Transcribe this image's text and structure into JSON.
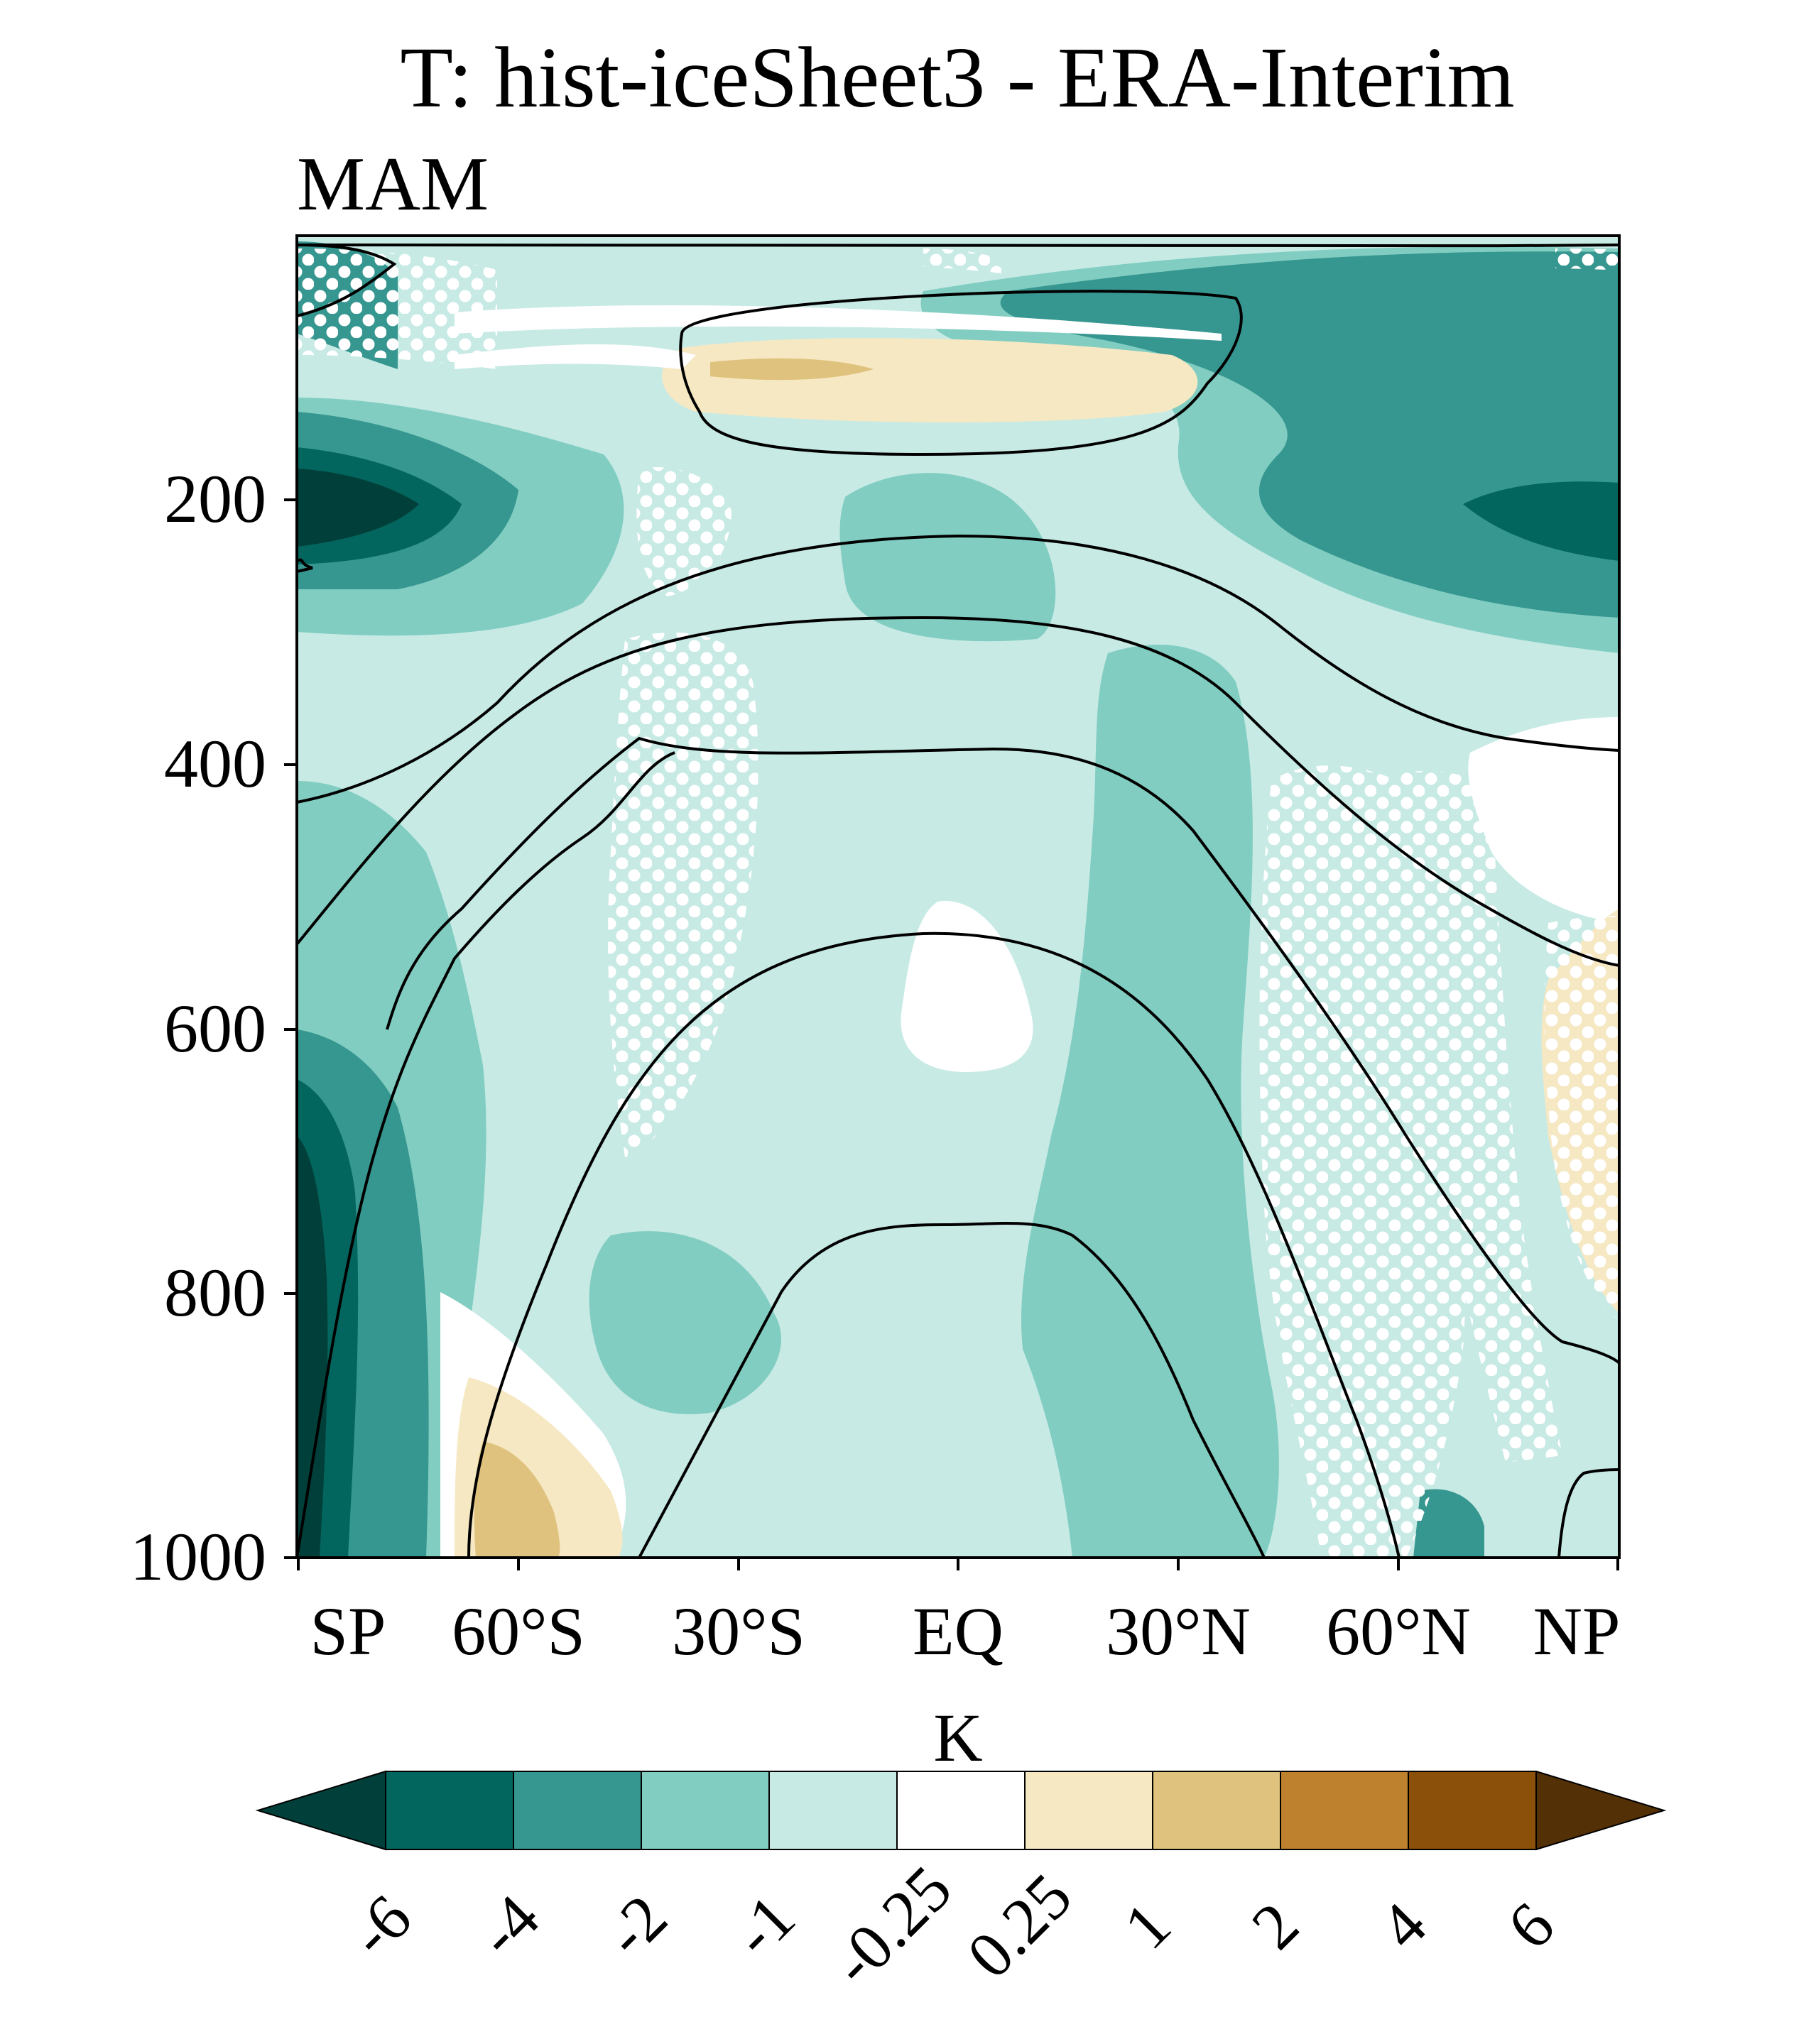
{
  "chart_data": {
    "type": "heatmap",
    "title": "T: hist-iceSheet3 - ERA-Interim",
    "subtitle": "MAM",
    "x_ticks": [
      "SP",
      "60°S",
      "30°S",
      "EQ",
      "30°N",
      "60°N",
      "NP"
    ],
    "x_values": [
      -90,
      -60,
      -30,
      0,
      30,
      60,
      90
    ],
    "xlim": [
      -90,
      90
    ],
    "y_ticks": [
      "200",
      "400",
      "600",
      "800",
      "1000"
    ],
    "y_values": [
      200,
      400,
      600,
      800,
      1000
    ],
    "ylim": [
      1000,
      5
    ],
    "colorbar": {
      "unit": "K",
      "levels": [
        "-6",
        "-4",
        "-2",
        "-1",
        "-0.25",
        "0.25",
        "1",
        "2",
        "4",
        "6"
      ],
      "colors": [
        "#01403a",
        "#03665e",
        "#369690",
        "#81cdc1",
        "#c7eae5",
        "#ffffff",
        "#f6e8c3",
        "#dfc27d",
        "#be812d",
        "#8b500a",
        "#533005"
      ],
      "extend": "both"
    },
    "stippling": "white dots",
    "contour_color": "#000000"
  }
}
